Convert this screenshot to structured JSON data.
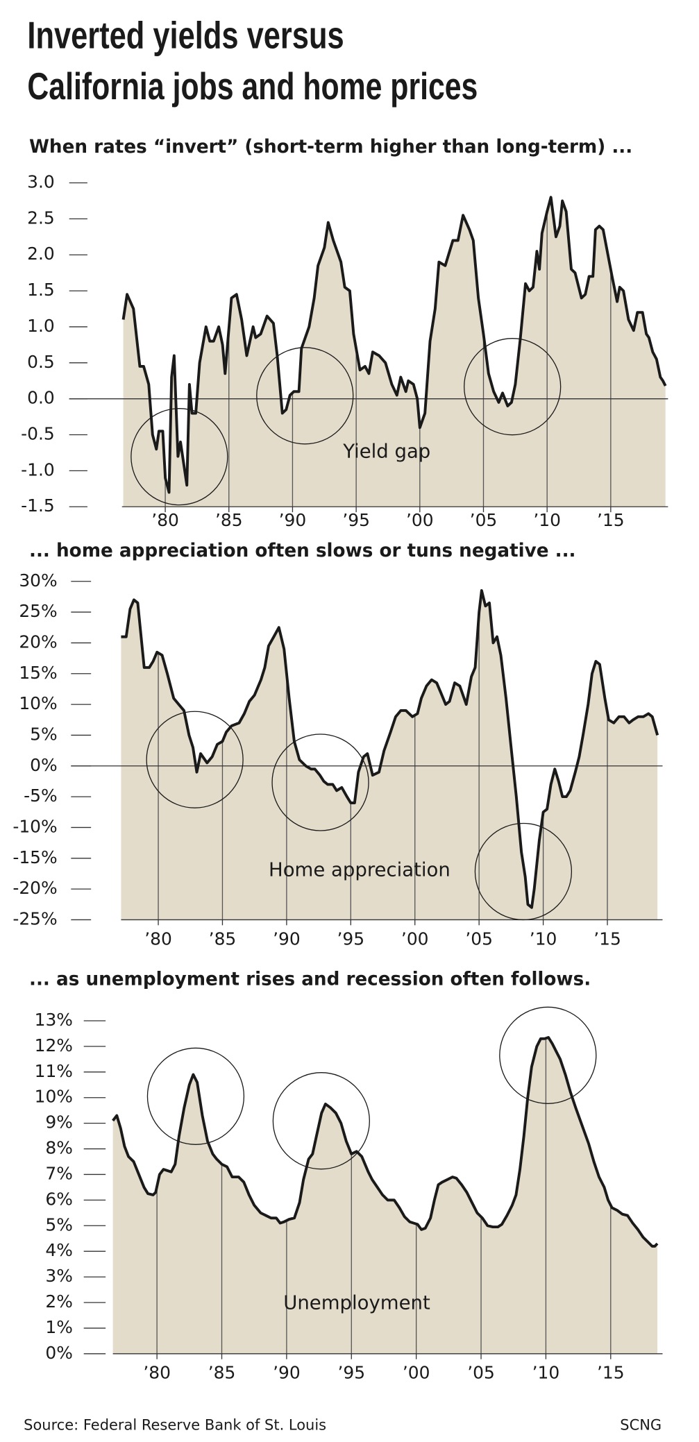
{
  "title": [
    "Inverted yields versus",
    "California jobs and home prices"
  ],
  "source": "Source: Federal Reserve Bank of St. Louis",
  "credit": "SCNG",
  "chart_data": [
    {
      "type": "area",
      "subtitle": "When rates “invert” (short-term higher than long-term) ...",
      "annotation": "Yield gap",
      "color": "#e3dccb",
      "line_color": "#1a1a1a",
      "xlim": [
        1976.6,
        2019.5
      ],
      "ylim": [
        -1.5,
        3.0
      ],
      "yticks": [
        {
          "value": 3.0,
          "label": "3.0"
        },
        2.5,
        {
          "value": 2.0,
          "label": "2.0"
        },
        1.5,
        {
          "value": 1.0,
          "label": "1.0"
        },
        0.5,
        {
          "value": 0.0,
          "label": "0.0"
        },
        -0.5,
        {
          "value": -1.0,
          "label": "-1.0"
        },
        -1.5
      ],
      "xticks": [
        {
          "value": 1980,
          "label": "’80"
        },
        {
          "value": 1985,
          "label": "’85"
        },
        {
          "value": 1990,
          "label": "’90"
        },
        {
          "value": 1995,
          "label": "’95"
        },
        {
          "value": 2000,
          "label": "’00"
        },
        {
          "value": 2005,
          "label": "’05"
        },
        {
          "value": 2010,
          "label": "’10"
        },
        {
          "value": 2015,
          "label": "’15"
        }
      ],
      "x": [
        1976.7,
        1977.0,
        1977.5,
        1978.0,
        1978.3,
        1978.7,
        1979.0,
        1979.3,
        1979.5,
        1979.8,
        1980.0,
        1980.3,
        1980.5,
        1980.7,
        1981.0,
        1981.2,
        1981.7,
        1981.9,
        1982.1,
        1982.4,
        1982.7,
        1983.2,
        1983.5,
        1983.8,
        1984.2,
        1984.5,
        1984.7,
        1985.2,
        1985.6,
        1986.0,
        1986.4,
        1986.9,
        1987.1,
        1987.5,
        1988.0,
        1988.5,
        1988.8,
        1989.2,
        1989.5,
        1989.8,
        1990.1,
        1990.5,
        1990.7,
        1991.3,
        1991.7,
        1992.0,
        1992.5,
        1992.8,
        1993.2,
        1993.8,
        1994.1,
        1994.5,
        1994.8,
        1995.3,
        1995.7,
        1996.0,
        1996.3,
        1996.8,
        1997.3,
        1997.8,
        1998.2,
        1998.5,
        1998.9,
        1999.1,
        1999.5,
        1999.8,
        2000.0,
        2000.4,
        2000.8,
        2001.2,
        2001.5,
        2002.0,
        2002.6,
        2003.0,
        2003.4,
        2003.9,
        2004.2,
        2004.6,
        2005.0,
        2005.4,
        2005.8,
        2006.2,
        2006.5,
        2006.9,
        2007.2,
        2007.5,
        2007.9,
        2008.3,
        2008.6,
        2008.9,
        2009.2,
        2009.4,
        2009.6,
        2010.0,
        2010.3,
        2010.7,
        2011.0,
        2011.2,
        2011.5,
        2011.9,
        2012.2,
        2012.7,
        2013.0,
        2013.3,
        2013.6,
        2013.8,
        2014.1,
        2014.4,
        2015.1,
        2015.5,
        2015.7,
        2016.0,
        2016.4,
        2016.8,
        2017.1,
        2017.5,
        2017.8,
        2018.0,
        2018.3,
        2018.6,
        2018.9,
        2019.1,
        2019.3
      ],
      "values": [
        1.1,
        1.45,
        1.25,
        0.45,
        0.45,
        0.2,
        -0.5,
        -0.7,
        -0.45,
        -0.45,
        -1.1,
        -1.3,
        0.3,
        0.6,
        -0.8,
        -0.6,
        -1.2,
        0.2,
        -0.2,
        -0.2,
        0.5,
        1.0,
        0.8,
        0.8,
        1.0,
        0.75,
        0.35,
        1.4,
        1.45,
        1.1,
        0.6,
        1.0,
        0.85,
        0.9,
        1.15,
        1.05,
        0.6,
        -0.2,
        -0.15,
        0.05,
        0.1,
        0.1,
        0.7,
        1.0,
        1.4,
        1.85,
        2.1,
        2.45,
        2.2,
        1.9,
        1.55,
        1.5,
        0.9,
        0.4,
        0.45,
        0.35,
        0.65,
        0.6,
        0.5,
        0.2,
        0.05,
        0.3,
        0.1,
        0.25,
        0.2,
        0.0,
        -0.4,
        -0.2,
        0.8,
        1.25,
        1.9,
        1.85,
        2.2,
        2.2,
        2.55,
        2.35,
        2.2,
        1.4,
        0.9,
        0.35,
        0.1,
        -0.05,
        0.08,
        -0.1,
        -0.05,
        0.2,
        0.85,
        1.6,
        1.5,
        1.55,
        2.05,
        1.8,
        2.3,
        2.6,
        2.8,
        2.25,
        2.4,
        2.75,
        2.6,
        1.8,
        1.75,
        1.4,
        1.45,
        1.7,
        1.7,
        2.35,
        2.4,
        2.35,
        1.7,
        1.35,
        1.55,
        1.5,
        1.1,
        0.95,
        1.2,
        1.2,
        0.9,
        0.85,
        0.65,
        0.55,
        0.3,
        0.25,
        0.18
      ]
    },
    {
      "type": "area",
      "subtitle": "... home appreciation often slows or tuns negative ...",
      "annotation": "Home appreciation",
      "color": "#e3dccb",
      "line_color": "#1a1a1a",
      "xlim": [
        1977.1,
        2019.3
      ],
      "ylim": [
        -25,
        30
      ],
      "yticks": [
        {
          "value": 30,
          "label": "30%"
        },
        {
          "value": 25,
          "label": "25%"
        },
        {
          "value": 20,
          "label": "20%"
        },
        {
          "value": 15,
          "label": "15%"
        },
        {
          "value": 10,
          "label": "10%"
        },
        {
          "value": 5,
          "label": "5%"
        },
        {
          "value": 0,
          "label": "0%"
        },
        {
          "value": -5,
          "label": "-5%"
        },
        {
          "value": -10,
          "label": "-10%"
        },
        {
          "value": -15,
          "label": "-15%"
        },
        {
          "value": -20,
          "label": "-20%"
        },
        {
          "value": -25,
          "label": "-25%"
        }
      ],
      "xticks": [
        {
          "value": 1980,
          "label": "’80"
        },
        {
          "value": 1985,
          "label": "’85"
        },
        {
          "value": 1990,
          "label": "’90"
        },
        {
          "value": 1995,
          "label": "’95"
        },
        {
          "value": 2000,
          "label": "’00"
        },
        {
          "value": 2005,
          "label": "’05"
        },
        {
          "value": 2010,
          "label": "’10"
        },
        {
          "value": 2015,
          "label": "’15"
        }
      ],
      "x": [
        1977.1,
        1977.5,
        1977.8,
        1978.1,
        1978.4,
        1978.9,
        1979.3,
        1979.6,
        1979.9,
        1980.3,
        1980.7,
        1981.2,
        1981.6,
        1982.0,
        1982.4,
        1982.7,
        1983.0,
        1983.3,
        1983.8,
        1984.2,
        1984.6,
        1985.0,
        1985.3,
        1985.7,
        1986.3,
        1986.7,
        1987.1,
        1987.5,
        1988.0,
        1988.3,
        1988.6,
        1989.0,
        1989.4,
        1989.8,
        1990.2,
        1990.6,
        1991.0,
        1991.5,
        1991.9,
        1992.2,
        1992.6,
        1992.9,
        1993.2,
        1993.6,
        1993.9,
        1994.3,
        1994.7,
        1995.0,
        1995.3,
        1995.6,
        1996.0,
        1996.3,
        1996.7,
        1997.2,
        1997.6,
        1998.1,
        1998.5,
        1998.9,
        1999.3,
        1999.8,
        2000.2,
        2000.5,
        2000.9,
        2001.3,
        2001.7,
        2002.0,
        2002.4,
        2002.7,
        2003.1,
        2003.5,
        2004.0,
        2004.4,
        2004.7,
        2005.0,
        2005.2,
        2005.5,
        2005.8,
        2006.1,
        2006.4,
        2006.7,
        2007.1,
        2007.5,
        2007.9,
        2008.3,
        2008.6,
        2008.8,
        2009.1,
        2009.3,
        2009.7,
        2010.0,
        2010.3,
        2010.6,
        2010.9,
        2011.2,
        2011.5,
        2011.8,
        2012.1,
        2012.5,
        2012.8,
        2013.1,
        2013.5,
        2013.8,
        2014.1,
        2014.4,
        2014.8,
        2015.1,
        2015.5,
        2015.9,
        2016.3,
        2016.7,
        2017.0,
        2017.4,
        2017.8,
        2018.2,
        2018.5,
        2018.9
      ],
      "values": [
        21,
        21,
        25.5,
        27,
        26.5,
        16,
        16,
        17,
        18.5,
        18,
        15,
        11,
        10,
        9,
        5,
        3,
        -1,
        2,
        0.5,
        1.5,
        3.5,
        4,
        5.5,
        6.5,
        7,
        8.5,
        10.5,
        11.5,
        14,
        16,
        19.5,
        21,
        22.5,
        19,
        11,
        4,
        1,
        0,
        -0.5,
        -0.5,
        -1.5,
        -2.5,
        -3,
        -3,
        -4,
        -3.5,
        -5,
        -6,
        -6,
        -1,
        1.5,
        2,
        -1.5,
        -1,
        2.5,
        5.5,
        8,
        9,
        9,
        8,
        8.5,
        11,
        13,
        14,
        13.5,
        12,
        10,
        10.5,
        13.5,
        13,
        10,
        14.5,
        16,
        25,
        28.5,
        26,
        26.5,
        20,
        21,
        18,
        11,
        3,
        -5,
        -14,
        -18,
        -22.5,
        -23,
        -20,
        -12,
        -7.5,
        -7,
        -3,
        -0.5,
        -2.5,
        -5,
        -5,
        -4,
        -1,
        1.5,
        5,
        10,
        15,
        17,
        16.5,
        11,
        7.5,
        7,
        8,
        8,
        7,
        7.5,
        8,
        8,
        8.5,
        8,
        5
      ]
    },
    {
      "type": "area",
      "subtitle": "... as unemployment rises and recession often follows.",
      "annotation": "Unemployment",
      "color": "#e3dccb",
      "line_color": "#1a1a1a",
      "xlim": [
        1976.6,
        2019.0
      ],
      "ylim": [
        0,
        13
      ],
      "yticks": [
        {
          "value": 13,
          "label": "13%"
        },
        {
          "value": 12,
          "label": "12%"
        },
        {
          "value": 11,
          "label": "11%"
        },
        {
          "value": 10,
          "label": "10%"
        },
        {
          "value": 9,
          "label": "9%"
        },
        {
          "value": 8,
          "label": "8%"
        },
        {
          "value": 7,
          "label": "7%"
        },
        {
          "value": 6,
          "label": "6%"
        },
        {
          "value": 5,
          "label": "5%"
        },
        {
          "value": 4,
          "label": "4%"
        },
        {
          "value": 3,
          "label": "3%"
        },
        {
          "value": 2,
          "label": "2%"
        },
        {
          "value": 1,
          "label": "1%"
        },
        {
          "value": 0,
          "label": "0%"
        }
      ],
      "xticks": [
        {
          "value": 1980,
          "label": "’80"
        },
        {
          "value": 1985,
          "label": "’85"
        },
        {
          "value": 1990,
          "label": "’90"
        },
        {
          "value": 1995,
          "label": "’95"
        },
        {
          "value": 2000,
          "label": "’00"
        },
        {
          "value": 2005,
          "label": "’05"
        },
        {
          "value": 2010,
          "label": "’10"
        },
        {
          "value": 2015,
          "label": "’15"
        }
      ],
      "x": [
        1976.6,
        1976.9,
        1977.2,
        1977.5,
        1977.8,
        1978.2,
        1978.6,
        1979.0,
        1979.3,
        1979.7,
        1979.9,
        1980.2,
        1980.5,
        1980.8,
        1981.1,
        1981.4,
        1981.7,
        1982.1,
        1982.5,
        1982.8,
        1983.1,
        1983.5,
        1983.9,
        1984.3,
        1984.6,
        1985.0,
        1985.4,
        1985.8,
        1986.3,
        1986.7,
        1987.1,
        1987.5,
        1988.0,
        1988.4,
        1988.8,
        1989.2,
        1989.5,
        1989.8,
        1990.2,
        1990.6,
        1991.0,
        1991.3,
        1991.7,
        1992.0,
        1992.3,
        1992.7,
        1993.0,
        1993.4,
        1993.8,
        1994.2,
        1994.6,
        1995.0,
        1995.4,
        1995.8,
        1996.3,
        1996.6,
        1997.0,
        1997.4,
        1997.8,
        1998.3,
        1998.7,
        1999.1,
        1999.5,
        1999.8,
        2000.1,
        2000.4,
        2000.7,
        2001.1,
        2001.4,
        2001.7,
        2002.0,
        2002.4,
        2002.8,
        2003.1,
        2003.5,
        2003.9,
        2004.3,
        2004.7,
        2005.1,
        2005.5,
        2005.9,
        2006.3,
        2006.6,
        2007.0,
        2007.4,
        2007.7,
        2008.0,
        2008.3,
        2008.6,
        2008.9,
        2009.3,
        2009.6,
        2009.9,
        2010.2,
        2010.5,
        2010.8,
        2011.1,
        2011.5,
        2011.9,
        2012.3,
        2012.8,
        2013.3,
        2013.7,
        2014.1,
        2014.5,
        2014.8,
        2015.1,
        2015.5,
        2015.9,
        2016.3,
        2016.7,
        2017.1,
        2017.5,
        2017.9,
        2018.2,
        2018.4,
        2018.6
      ],
      "values": [
        9.1,
        9.3,
        8.8,
        8.1,
        7.7,
        7.5,
        7.0,
        6.5,
        6.25,
        6.2,
        6.3,
        7.0,
        7.2,
        7.15,
        7.1,
        7.4,
        8.5,
        9.6,
        10.5,
        10.9,
        10.6,
        9.3,
        8.3,
        7.8,
        7.6,
        7.4,
        7.3,
        6.9,
        6.9,
        6.7,
        6.2,
        5.8,
        5.5,
        5.4,
        5.3,
        5.3,
        5.1,
        5.15,
        5.25,
        5.3,
        5.9,
        6.8,
        7.6,
        7.8,
        8.5,
        9.4,
        9.75,
        9.6,
        9.4,
        9.0,
        8.3,
        7.8,
        7.9,
        7.7,
        7.1,
        6.8,
        6.5,
        6.2,
        6.0,
        6.0,
        5.7,
        5.35,
        5.15,
        5.1,
        5.05,
        4.85,
        4.9,
        5.3,
        6.0,
        6.6,
        6.7,
        6.8,
        6.9,
        6.85,
        6.6,
        6.3,
        5.9,
        5.5,
        5.3,
        5.0,
        4.95,
        4.95,
        5.05,
        5.4,
        5.8,
        6.2,
        7.2,
        8.5,
        10.0,
        11.2,
        12.0,
        12.3,
        12.3,
        12.35,
        12.1,
        11.8,
        11.5,
        10.9,
        10.2,
        9.6,
        8.9,
        8.2,
        7.5,
        6.9,
        6.5,
        6.0,
        5.7,
        5.6,
        5.45,
        5.4,
        5.1,
        4.85,
        4.55,
        4.35,
        4.2,
        4.2,
        4.3
      ]
    }
  ]
}
